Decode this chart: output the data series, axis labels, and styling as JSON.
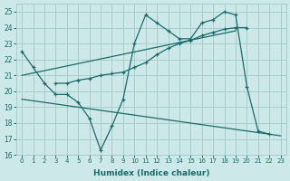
{
  "background_color": "#cde8e8",
  "grid_color": "#a8cccc",
  "line_color": "#1a6b6b",
  "xlabel": "Humidex (Indice chaleur)",
  "xlim": [
    -0.5,
    23.5
  ],
  "ylim": [
    16,
    25.5
  ],
  "yticks": [
    16,
    17,
    18,
    19,
    20,
    21,
    22,
    23,
    24,
    25
  ],
  "xticks": [
    0,
    1,
    2,
    3,
    4,
    5,
    6,
    7,
    8,
    9,
    10,
    11,
    12,
    13,
    14,
    15,
    16,
    17,
    18,
    19,
    20,
    21,
    22,
    23
  ],
  "s1_x": [
    0,
    1,
    2,
    3,
    4,
    5,
    6,
    7,
    8,
    9,
    10,
    11,
    12,
    13,
    14,
    15,
    16,
    17,
    18,
    19,
    20,
    21,
    22
  ],
  "s1_y": [
    22.5,
    21.5,
    20.5,
    19.8,
    19.8,
    19.3,
    18.3,
    16.3,
    17.8,
    19.5,
    23.0,
    24.8,
    24.3,
    23.8,
    23.3,
    23.3,
    24.3,
    24.5,
    25.0,
    24.8,
    20.3,
    17.5,
    17.3
  ],
  "s2_x": [
    3,
    4,
    5,
    6,
    7,
    8,
    9,
    10,
    11,
    12,
    13,
    14,
    15,
    16,
    17,
    18,
    19,
    20
  ],
  "s2_y": [
    20.5,
    20.5,
    20.7,
    20.8,
    21.0,
    21.1,
    21.2,
    21.5,
    21.8,
    22.3,
    22.7,
    23.0,
    23.2,
    23.5,
    23.7,
    23.9,
    24.0,
    24.0
  ],
  "trend1_x": [
    0,
    19
  ],
  "trend1_y": [
    21.0,
    23.8
  ],
  "trend2_x": [
    0,
    23
  ],
  "trend2_y": [
    19.5,
    17.2
  ]
}
